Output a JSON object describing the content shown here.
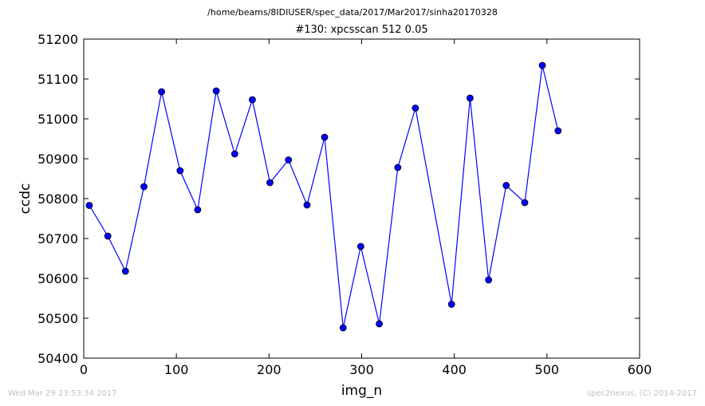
{
  "header": {
    "suptitle": "/home/beams/8IDIUSER/spec_data/2017/Mar2017/sinha20170328",
    "title": "#130: xpcsscan 512 0.05"
  },
  "footer": {
    "left": "Wed Mar 29 23:53:34 2017",
    "right": "spec2nexus, (C) 2014-2017"
  },
  "chart_data": {
    "type": "line",
    "title": "#130: xpcsscan 512 0.05",
    "xlabel": "img_n",
    "ylabel": "ccdc",
    "xlim": [
      0,
      600
    ],
    "ylim": [
      50400,
      51200
    ],
    "xticks": [
      0,
      100,
      200,
      300,
      400,
      500,
      600
    ],
    "yticks": [
      50400,
      50500,
      50600,
      50700,
      50800,
      50900,
      51000,
      51100,
      51200
    ],
    "grid": false,
    "line_color": "#0000ff",
    "marker": "circle",
    "series": [
      {
        "x": [
          6,
          26,
          45,
          65,
          84,
          104,
          123,
          143,
          163,
          182,
          201,
          221,
          241,
          260,
          280,
          299,
          319,
          339,
          358,
          397,
          417,
          437,
          456,
          476,
          495,
          512
        ],
        "values": [
          50783,
          50706,
          50618,
          50830,
          51068,
          50870,
          50772,
          51070,
          50912,
          51048,
          50840,
          50897,
          50784,
          50954,
          50476,
          50680,
          50486,
          50878,
          51027,
          50535,
          51052,
          50596,
          50833,
          50790,
          51134,
          50970
        ]
      }
    ]
  }
}
